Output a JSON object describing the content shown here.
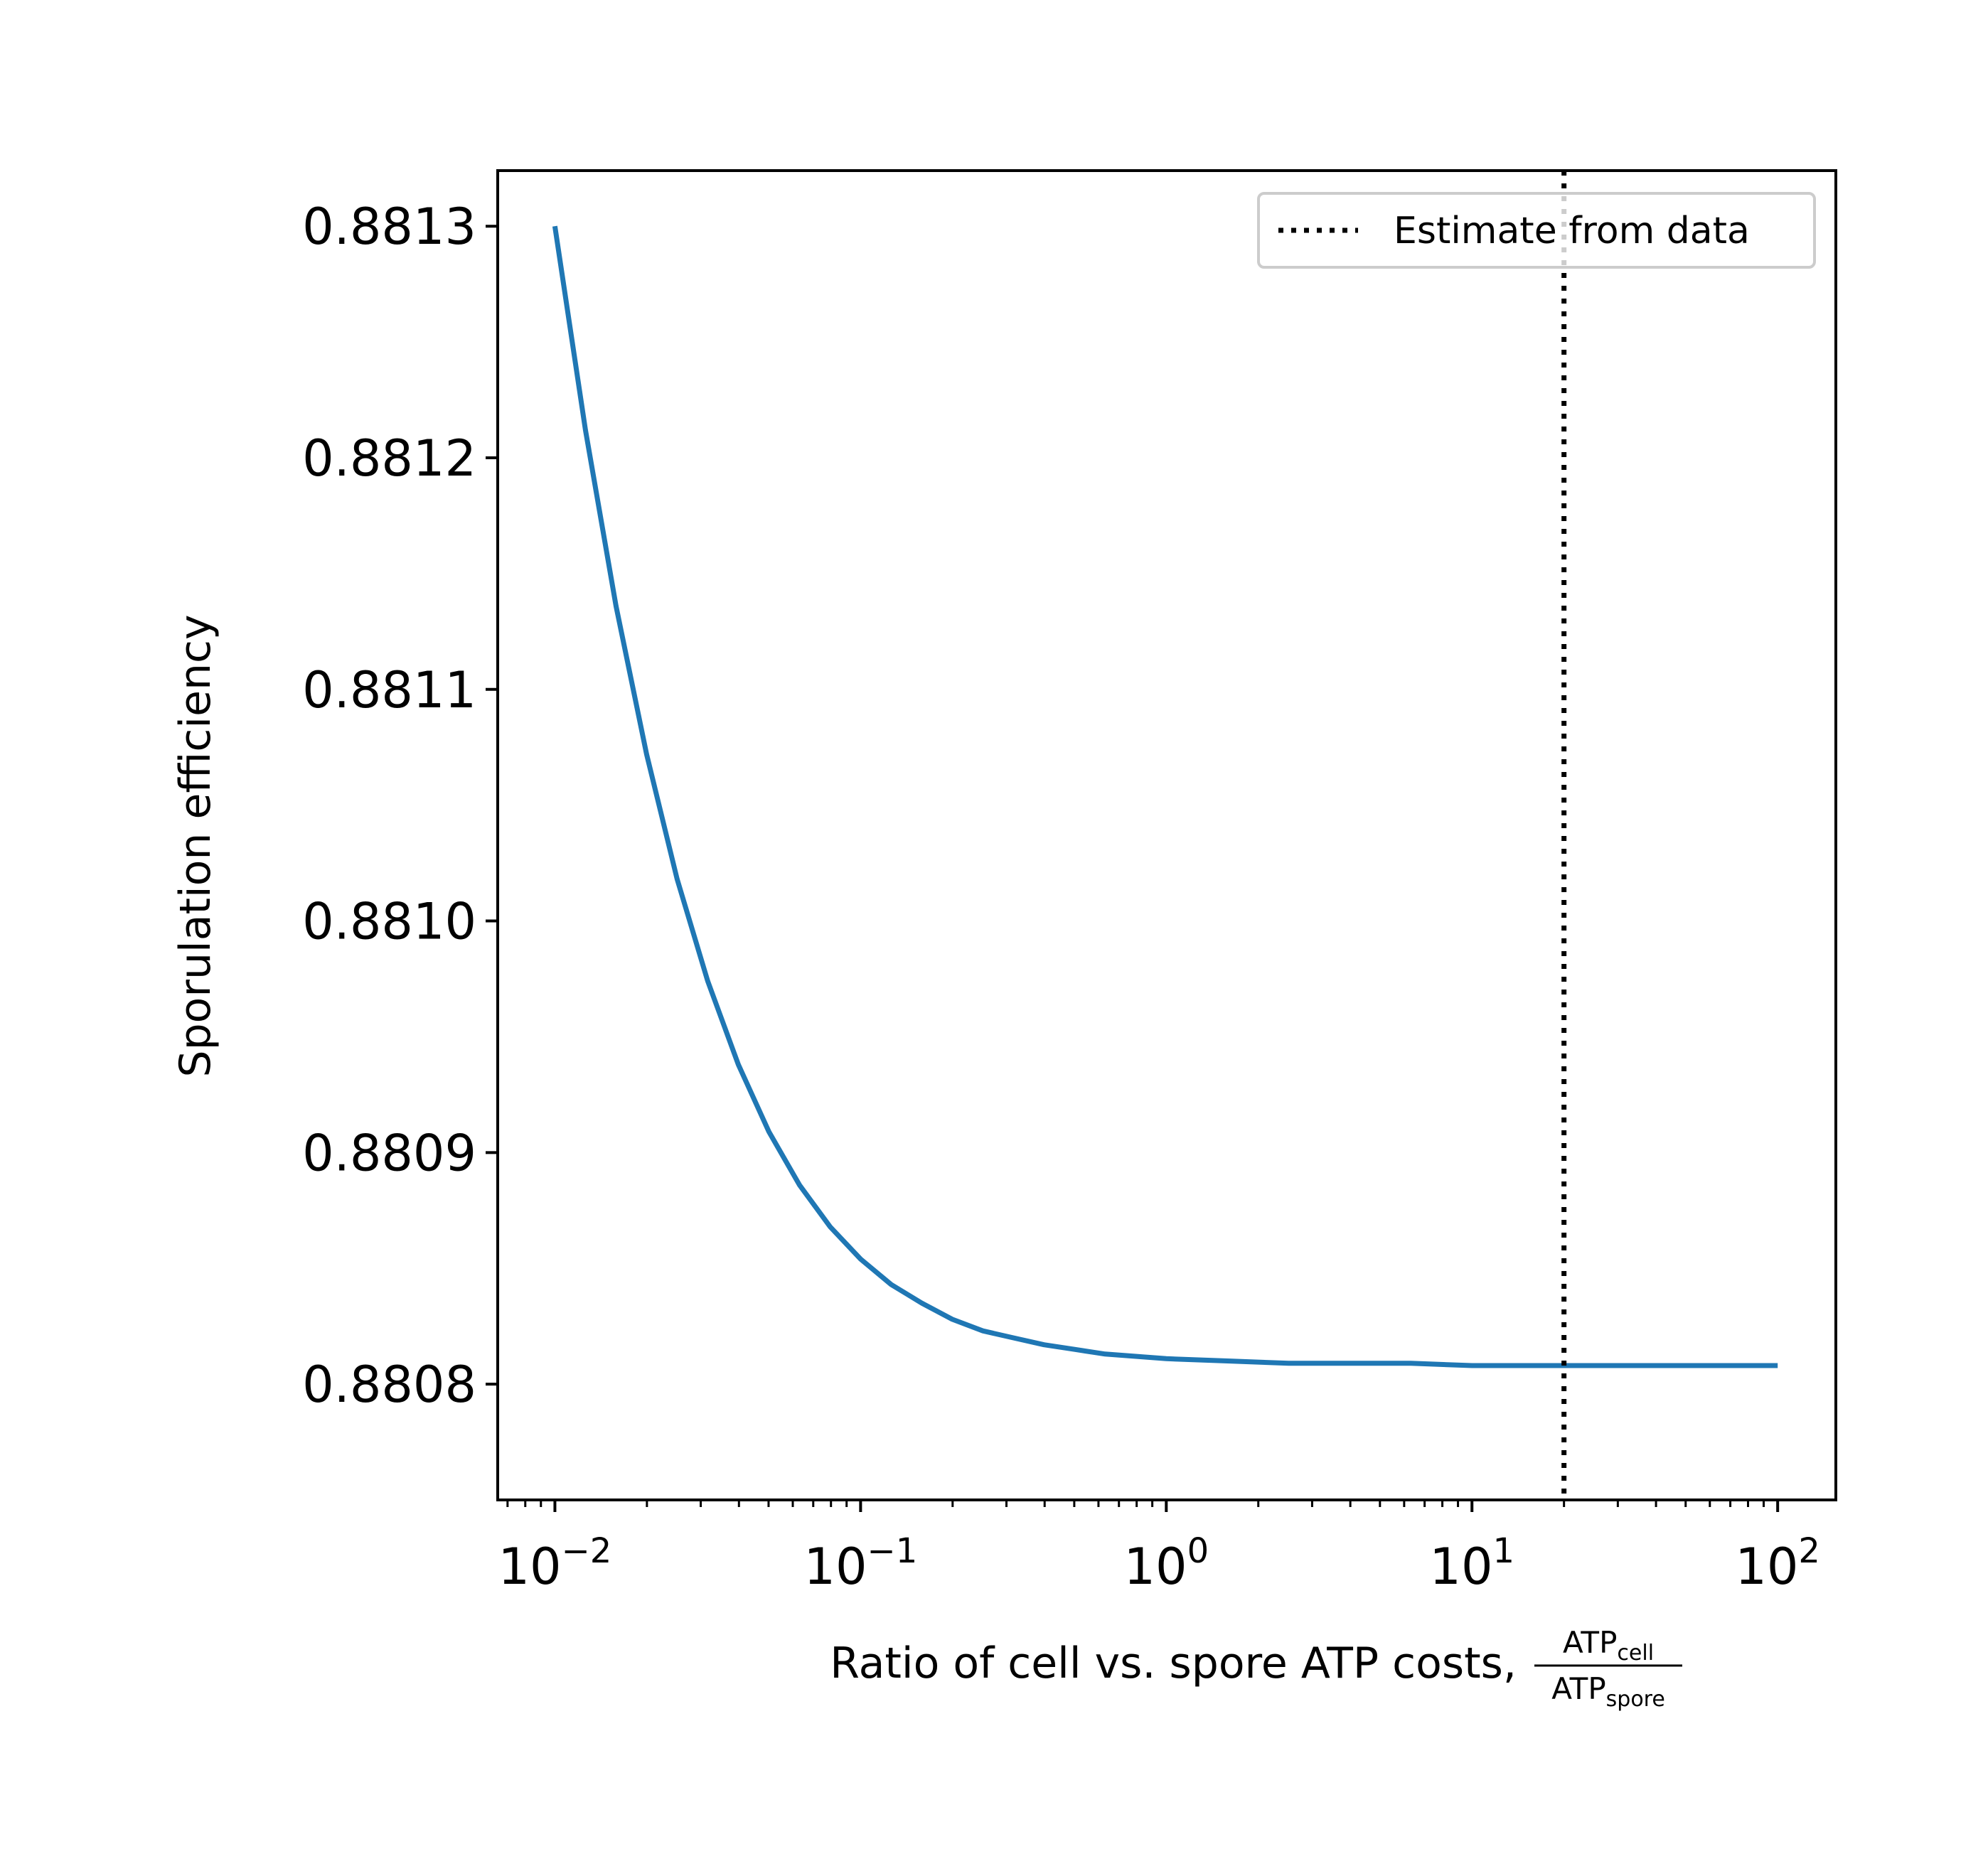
{
  "chart_data": {
    "type": "line",
    "xscale": "log",
    "xlim": [
      0.0065,
      155
    ],
    "ylim": [
      0.88075,
      0.881324
    ],
    "xlabel": "Ratio of cell vs. spore ATP costs,",
    "xlabel_fraction": {
      "numerator": "ATP",
      "numerator_sub": "cell",
      "denominator": "ATP",
      "denominator_sub": "spore"
    },
    "ylabel": "Sporulation efficiency",
    "x_ticks": [
      {
        "value": 0.01,
        "base": "10",
        "exp": "−2"
      },
      {
        "value": 0.1,
        "base": "10",
        "exp": "−1"
      },
      {
        "value": 1,
        "base": "10",
        "exp": "0"
      },
      {
        "value": 10,
        "base": "10",
        "exp": "1"
      },
      {
        "value": 100,
        "base": "10",
        "exp": "2"
      }
    ],
    "y_ticks": [
      {
        "value": 0.8808,
        "label": "0.8808"
      },
      {
        "value": 0.8809,
        "label": "0.8809"
      },
      {
        "value": 0.881,
        "label": "0.8810"
      },
      {
        "value": 0.8811,
        "label": "0.8811"
      },
      {
        "value": 0.8812,
        "label": "0.8812"
      },
      {
        "value": 0.8813,
        "label": "0.8813"
      }
    ],
    "grid": false,
    "legend": {
      "placement": "top-right",
      "entries": [
        {
          "label": "Estimate from data",
          "style": "dotted",
          "color": "#000000"
        }
      ]
    },
    "series": [
      {
        "color": "#1f77b4",
        "style": "solid",
        "x": [
          0.01,
          0.01259,
          0.01585,
          0.01995,
          0.02512,
          0.03162,
          0.03981,
          0.05012,
          0.0631,
          0.07943,
          0.1,
          0.1259,
          0.1585,
          0.1995,
          0.2512,
          0.3162,
          0.3981,
          0.5012,
          0.631,
          0.7943,
          1,
          1.585,
          2.512,
          3.981,
          6.31,
          10,
          15.85,
          25.12,
          39.81,
          63.1,
          100
        ],
        "y": [
          0.8813,
          0.881212,
          0.881136,
          0.881072,
          0.881018,
          0.880974,
          0.880938,
          0.880909,
          0.880886,
          0.880868,
          0.880854,
          0.880843,
          0.880835,
          0.880828,
          0.880823,
          0.88082,
          0.880817,
          0.880815,
          0.880813,
          0.880812,
          0.880811,
          0.88081,
          0.880809,
          0.880809,
          0.880809,
          0.880808,
          0.880808,
          0.880808,
          0.880808,
          0.880808,
          0.880808
        ]
      },
      {
        "name": "Estimate from data",
        "color": "#000000",
        "style": "dotted",
        "vline_x": 20
      }
    ]
  }
}
